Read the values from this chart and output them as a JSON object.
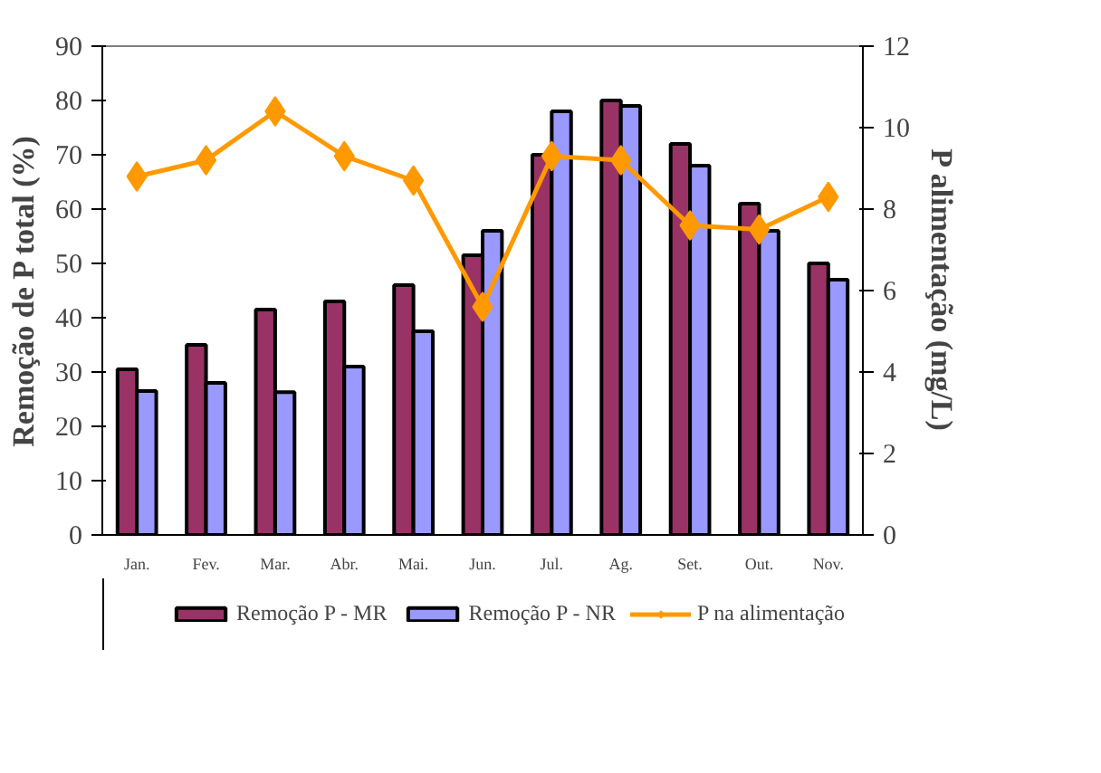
{
  "chart_data": {
    "type": "bar",
    "ylabel": "Remoção de P total (%)",
    "y2label": "P alimentação (mg/L)",
    "categories": [
      "Jan.",
      "Fev.",
      "Mar.",
      "Abr.",
      "Mai.",
      "Jun.",
      "Jul.",
      "Ag.",
      "Set.",
      "Out.",
      "Nov."
    ],
    "series": [
      {
        "name": "Remoção P - MR",
        "color": "#993366",
        "values": [
          30.5,
          35,
          41.5,
          43,
          46,
          51.5,
          70,
          80,
          72,
          61,
          50
        ]
      },
      {
        "name": "Remoção P - NR",
        "color": "#9999ff",
        "values": [
          26.5,
          28,
          26.3,
          31,
          37.5,
          56,
          78,
          79,
          68,
          56,
          47
        ]
      },
      {
        "name": "P na alimentação",
        "type": "line",
        "axis": "y2",
        "color": "#ff9900",
        "marker": "diamond",
        "values": [
          8.8,
          9.2,
          10.4,
          9.3,
          8.7,
          5.6,
          9.3,
          9.2,
          7.6,
          7.5,
          8.3
        ]
      }
    ],
    "ylim": [
      0,
      90
    ],
    "yticks": [
      0,
      10,
      20,
      30,
      40,
      50,
      60,
      70,
      80,
      90
    ],
    "y2lim": [
      0,
      12
    ],
    "y2ticks": [
      0,
      2,
      4,
      6,
      8,
      10,
      12
    ],
    "grid": false,
    "legend": "bottom"
  }
}
